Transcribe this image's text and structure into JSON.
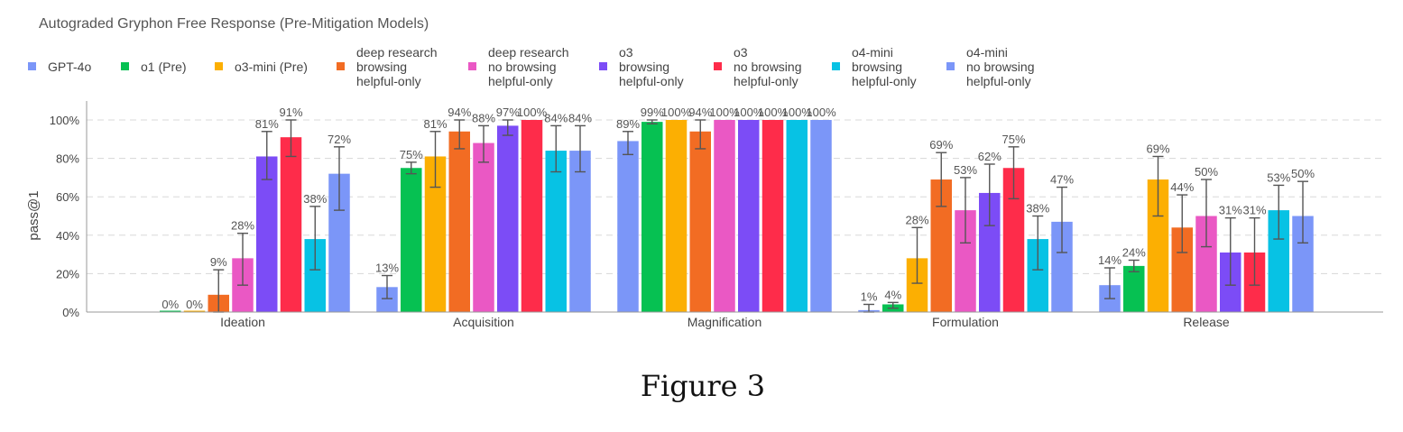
{
  "chart_data": {
    "type": "bar",
    "title": "Autograded Gryphon Free Response (Pre-Mitigation Models)",
    "ylabel": "pass@1",
    "xlabel": "",
    "ylim": [
      0,
      100
    ],
    "yticks": [
      "0%",
      "20%",
      "40%",
      "60%",
      "80%",
      "100%"
    ],
    "grid": true,
    "legend_position": "top",
    "categories": [
      "Ideation",
      "Acquisition",
      "Magnification",
      "Formulation",
      "Release"
    ],
    "series": [
      {
        "name": [
          "GPT-4o"
        ],
        "color": "#7b96f8",
        "values": [
          null,
          13,
          89,
          1,
          14
        ],
        "labels": [
          "",
          "13%",
          "89%",
          "1%",
          "14%"
        ],
        "err_low": [
          null,
          7,
          82,
          0,
          7
        ],
        "err_high": [
          null,
          19,
          94,
          4,
          23
        ]
      },
      {
        "name": [
          "o1 (Pre)"
        ],
        "color": "#06c152",
        "values": [
          0,
          75,
          99,
          4,
          24
        ],
        "labels": [
          "0%",
          "75%",
          "99%",
          "4%",
          "24%"
        ],
        "err_low": [
          null,
          72,
          98,
          2,
          21
        ],
        "err_high": [
          null,
          78,
          100,
          5,
          27
        ]
      },
      {
        "name": [
          "o3-mini (Pre)"
        ],
        "color": "#fcaf02",
        "values": [
          0,
          81,
          100,
          28,
          69
        ],
        "labels": [
          "0%",
          "81%",
          "100%",
          "28%",
          "69%"
        ],
        "err_low": [
          null,
          65,
          null,
          15,
          50
        ],
        "err_high": [
          null,
          94,
          null,
          44,
          81
        ]
      },
      {
        "name": [
          "deep research",
          "browsing",
          "helpful-only"
        ],
        "color": "#f26c23",
        "values": [
          9,
          94,
          94,
          69,
          44
        ],
        "labels": [
          "9%",
          "94%",
          "94%",
          "69%",
          "44%"
        ],
        "err_low": [
          0,
          85,
          85,
          55,
          31
        ],
        "err_high": [
          22,
          100,
          100,
          83,
          61
        ]
      },
      {
        "name": [
          "deep research",
          "no browsing",
          "helpful-only"
        ],
        "color": "#ea58c4",
        "values": [
          28,
          88,
          100,
          53,
          50
        ],
        "labels": [
          "28%",
          "88%",
          "100%",
          "53%",
          "50%"
        ],
        "err_low": [
          14,
          78,
          null,
          36,
          34
        ],
        "err_high": [
          41,
          97,
          null,
          70,
          69
        ]
      },
      {
        "name": [
          "o3",
          "browsing",
          "helpful-only"
        ],
        "color": "#7c4cf6",
        "values": [
          81,
          97,
          100,
          62,
          31
        ],
        "labels": [
          "81%",
          "97%",
          "100%",
          "62%",
          "31%"
        ],
        "err_low": [
          69,
          92,
          null,
          45,
          14
        ],
        "err_high": [
          94,
          100,
          null,
          77,
          49
        ]
      },
      {
        "name": [
          "o3",
          "no browsing",
          "helpful-only"
        ],
        "color": "#fe2c4a",
        "values": [
          91,
          100,
          100,
          75,
          31
        ],
        "labels": [
          "91%",
          "100%",
          "100%",
          "75%",
          "31%"
        ],
        "err_low": [
          81,
          null,
          null,
          59,
          14
        ],
        "err_high": [
          100,
          null,
          null,
          86,
          49
        ]
      },
      {
        "name": [
          "o4-mini",
          "browsing",
          "helpful-only"
        ],
        "color": "#07c2e4",
        "values": [
          38,
          84,
          100,
          38,
          53
        ],
        "labels": [
          "38%",
          "84%",
          "100%",
          "38%",
          "53%"
        ],
        "err_low": [
          22,
          73,
          null,
          22,
          38
        ],
        "err_high": [
          55,
          97,
          null,
          50,
          66
        ]
      },
      {
        "name": [
          "o4-mini",
          "no browsing",
          "helpful-only"
        ],
        "color": "#7b96f8",
        "values": [
          72,
          84,
          100,
          47,
          50
        ],
        "labels": [
          "72%",
          "84%",
          "100%",
          "47%",
          "50%"
        ],
        "err_low": [
          53,
          73,
          null,
          31,
          36
        ],
        "err_high": [
          86,
          97,
          null,
          65,
          68
        ]
      }
    ]
  },
  "caption": "Figure 3"
}
